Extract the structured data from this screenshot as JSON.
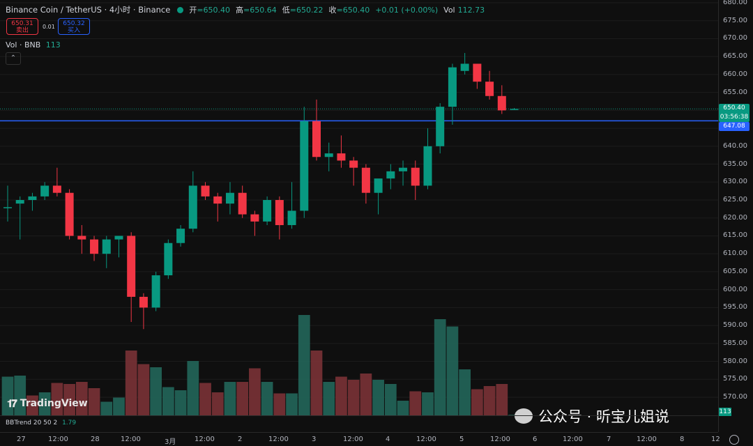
{
  "header": {
    "title": "Binance Coin / TetherUS · 4小时 · Binance",
    "ohlc": [
      {
        "k": "开",
        "v": "=650.40"
      },
      {
        "k": "高",
        "v": "=650.64"
      },
      {
        "k": "低",
        "v": "=650.22"
      },
      {
        "k": "收",
        "v": "=650.40"
      }
    ],
    "change": "+0.01 (+0.00%)",
    "vol_label": "Vol",
    "vol_value": "112.73"
  },
  "trade": {
    "bid": "650.31",
    "bid_label": "卖出",
    "spread": "0.01",
    "ask": "650.32",
    "ask_label": "买入"
  },
  "vol_legend": {
    "label": "Vol · BNB",
    "value": "113"
  },
  "bbtrend": {
    "label": "BBTrend 20 50 2",
    "value": "1.79"
  },
  "watermark": "TradingView",
  "wechat_text": "公众号 · 听宝儿姐说",
  "price_tags": {
    "last": "650.40",
    "countdown": "03:56:38",
    "hline": "647.08",
    "vol_tag": "113"
  },
  "colors": {
    "up": "#089981",
    "down": "#f23645",
    "hline": "#2962ff",
    "bg": "#0f0f0f"
  },
  "chart_data": {
    "type": "candlestick",
    "title": "Binance Coin / TetherUS · 4小时 · Binance",
    "ylim": [
      566,
      680
    ],
    "y_ticks": [
      680,
      675,
      670,
      665,
      660,
      655,
      650,
      645,
      640,
      635,
      630,
      625,
      620,
      615,
      610,
      605,
      600,
      595,
      590,
      585,
      580,
      575,
      570
    ],
    "x_ticks": [
      "27",
      "12:00",
      "28",
      "12:00",
      "3月",
      "12:00",
      "2",
      "12:00",
      "3",
      "12:00",
      "4",
      "12:00",
      "5",
      "12:00",
      "6",
      "12:00",
      "7",
      "12:00",
      "8",
      "12"
    ],
    "horizontal_line": 647.08,
    "candles": [
      {
        "o": 623,
        "h": 629,
        "l": 619,
        "c": 623
      },
      {
        "o": 624,
        "h": 626,
        "l": 614,
        "c": 625
      },
      {
        "o": 625,
        "h": 627,
        "l": 622,
        "c": 626
      },
      {
        "o": 626,
        "h": 630,
        "l": 625,
        "c": 629
      },
      {
        "o": 629,
        "h": 634,
        "l": 626,
        "c": 627
      },
      {
        "o": 627,
        "h": 628,
        "l": 614,
        "c": 615
      },
      {
        "o": 615,
        "h": 618,
        "l": 610,
        "c": 614
      },
      {
        "o": 614,
        "h": 615,
        "l": 608,
        "c": 610
      },
      {
        "o": 610,
        "h": 615,
        "l": 606,
        "c": 614
      },
      {
        "o": 614,
        "h": 615,
        "l": 609,
        "c": 615
      },
      {
        "o": 615,
        "h": 616,
        "l": 591,
        "c": 598
      },
      {
        "o": 598,
        "h": 599,
        "l": 589,
        "c": 595
      },
      {
        "o": 595,
        "h": 605,
        "l": 594,
        "c": 604
      },
      {
        "o": 604,
        "h": 614,
        "l": 603,
        "c": 613
      },
      {
        "o": 613,
        "h": 618,
        "l": 612,
        "c": 617
      },
      {
        "o": 617,
        "h": 633,
        "l": 616,
        "c": 629
      },
      {
        "o": 629,
        "h": 630,
        "l": 625,
        "c": 626
      },
      {
        "o": 626,
        "h": 627,
        "l": 619,
        "c": 624
      },
      {
        "o": 624,
        "h": 630,
        "l": 621,
        "c": 627
      },
      {
        "o": 627,
        "h": 629,
        "l": 620,
        "c": 621
      },
      {
        "o": 621,
        "h": 622,
        "l": 615,
        "c": 619
      },
      {
        "o": 619,
        "h": 626,
        "l": 618,
        "c": 625
      },
      {
        "o": 625,
        "h": 626,
        "l": 614,
        "c": 618
      },
      {
        "o": 618,
        "h": 630,
        "l": 617,
        "c": 622
      },
      {
        "o": 622,
        "h": 651,
        "l": 620,
        "c": 647
      },
      {
        "o": 647,
        "h": 653,
        "l": 636,
        "c": 637
      },
      {
        "o": 637,
        "h": 641,
        "l": 633,
        "c": 638
      },
      {
        "o": 638,
        "h": 643,
        "l": 634,
        "c": 636
      },
      {
        "o": 636,
        "h": 637,
        "l": 629,
        "c": 634
      },
      {
        "o": 634,
        "h": 635,
        "l": 624,
        "c": 627
      },
      {
        "o": 627,
        "h": 630,
        "l": 621,
        "c": 631
      },
      {
        "o": 631,
        "h": 635,
        "l": 628,
        "c": 633
      },
      {
        "o": 633,
        "h": 636,
        "l": 629,
        "c": 634
      },
      {
        "o": 634,
        "h": 636,
        "l": 625,
        "c": 629
      },
      {
        "o": 629,
        "h": 645,
        "l": 628,
        "c": 640
      },
      {
        "o": 640,
        "h": 652,
        "l": 638,
        "c": 651
      },
      {
        "o": 651,
        "h": 663,
        "l": 646,
        "c": 662
      },
      {
        "o": 661,
        "h": 666,
        "l": 660,
        "c": 663
      },
      {
        "o": 663,
        "h": 663,
        "l": 656,
        "c": 658
      },
      {
        "o": 658,
        "h": 661,
        "l": 653,
        "c": 654
      },
      {
        "o": 654,
        "h": 657,
        "l": 649,
        "c": 650
      },
      {
        "o": 650.4,
        "h": 650.64,
        "l": 650.22,
        "c": 650.4
      }
    ],
    "volume": [
      {
        "v": 37,
        "up": true
      },
      {
        "v": 38,
        "up": true
      },
      {
        "v": 19,
        "up": false
      },
      {
        "v": 22,
        "up": true
      },
      {
        "v": 31,
        "up": false
      },
      {
        "v": 30,
        "up": false
      },
      {
        "v": 32,
        "up": false
      },
      {
        "v": 26,
        "up": false
      },
      {
        "v": 13,
        "up": true
      },
      {
        "v": 17,
        "up": true
      },
      {
        "v": 62,
        "up": false
      },
      {
        "v": 49,
        "up": false
      },
      {
        "v": 46,
        "up": true
      },
      {
        "v": 27,
        "up": true
      },
      {
        "v": 24,
        "up": true
      },
      {
        "v": 52,
        "up": true
      },
      {
        "v": 31,
        "up": false
      },
      {
        "v": 22,
        "up": false
      },
      {
        "v": 32,
        "up": true
      },
      {
        "v": 32,
        "up": false
      },
      {
        "v": 45,
        "up": false
      },
      {
        "v": 32,
        "up": true
      },
      {
        "v": 21,
        "up": false
      },
      {
        "v": 21,
        "up": true
      },
      {
        "v": 96,
        "up": true
      },
      {
        "v": 62,
        "up": false
      },
      {
        "v": 32,
        "up": true
      },
      {
        "v": 37,
        "up": false
      },
      {
        "v": 34,
        "up": false
      },
      {
        "v": 40,
        "up": false
      },
      {
        "v": 34,
        "up": true
      },
      {
        "v": 30,
        "up": true
      },
      {
        "v": 14,
        "up": true
      },
      {
        "v": 23,
        "up": false
      },
      {
        "v": 22,
        "up": true
      },
      {
        "v": 92,
        "up": true
      },
      {
        "v": 85,
        "up": true
      },
      {
        "v": 44,
        "up": true
      },
      {
        "v": 25,
        "up": false
      },
      {
        "v": 28,
        "up": false
      },
      {
        "v": 30,
        "up": false
      },
      {
        "v": 0.5,
        "up": true
      }
    ]
  }
}
